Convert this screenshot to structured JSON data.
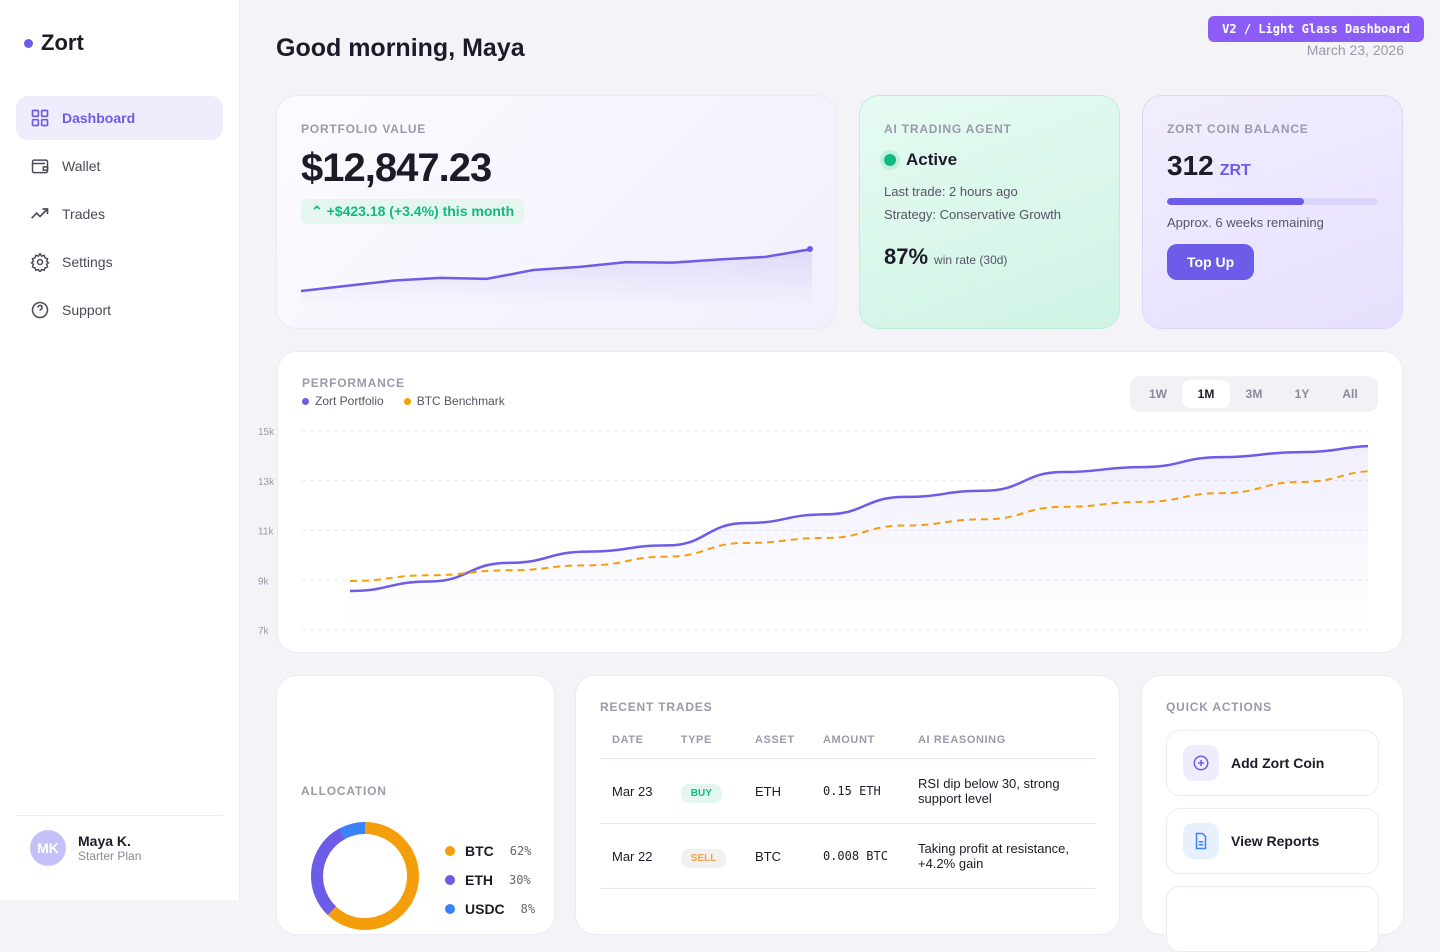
{
  "app": {
    "name": "Zort",
    "accent": "#6c5ce7"
  },
  "sidebar": {
    "items": [
      {
        "label": "Dashboard",
        "icon": "grid-icon",
        "active": true
      },
      {
        "label": "Wallet",
        "icon": "wallet-icon"
      },
      {
        "label": "Trades",
        "icon": "trending-up-icon"
      },
      {
        "label": "Settings",
        "icon": "gear-icon"
      },
      {
        "label": "Support",
        "icon": "help-circle-icon"
      }
    ],
    "user": {
      "initials": "MK",
      "name": "Maya K.",
      "plan": "Starter Plan"
    }
  },
  "header": {
    "greeting": "Good morning, Maya",
    "badge": "V2 / Light Glass Dashboard",
    "date": "March 23, 2026"
  },
  "portfolio": {
    "label": "PORTFOLIO VALUE",
    "value": "$12,847.23",
    "change": "+$423.18 (+3.4%) this month",
    "sparkline": [
      10,
      11,
      12,
      12.5,
      12.3,
      14,
      14.6,
      15.5,
      15.4,
      16,
      16.5,
      18
    ]
  },
  "agent": {
    "label": "AI TRADING AGENT",
    "status": "Active",
    "last_trade": "Last trade: 2 hours ago",
    "strategy": "Strategy: Conservative Growth",
    "win_rate": "87%",
    "win_label": "win rate (30d)"
  },
  "coin": {
    "label": "ZORT COIN BALANCE",
    "amount": "312",
    "unit": "ZRT",
    "progress_pct": 65,
    "remaining": "Approx. 6 weeks remaining",
    "button": "Top Up"
  },
  "performance": {
    "label": "PERFORMANCE",
    "ranges": [
      "1W",
      "1M",
      "3M",
      "1Y",
      "All"
    ],
    "selected_range": "1M"
  },
  "chart_data": {
    "type": "line",
    "y_ticks": [
      "15k",
      "13k",
      "11k",
      "9k",
      "7k"
    ],
    "ylim": [
      7,
      15
    ],
    "grid": true,
    "legend": "top-left",
    "series": [
      {
        "name": "Zort Portfolio",
        "color": "#6c5ce7",
        "style": "solid",
        "values": [
          8.57,
          8.95,
          9.7,
          10.15,
          10.4,
          11.3,
          11.65,
          12.35,
          12.6,
          13.35,
          13.55,
          13.95,
          14.15,
          14.4
        ]
      },
      {
        "name": "BTC Benchmark",
        "color": "#f59e0b",
        "style": "dashed",
        "values": [
          8.97,
          9.2,
          9.4,
          9.6,
          9.95,
          10.5,
          10.7,
          11.2,
          11.45,
          11.95,
          12.15,
          12.5,
          12.95,
          13.4
        ]
      }
    ]
  },
  "allocation": {
    "label": "ALLOCATION",
    "items": [
      {
        "asset": "BTC",
        "pct": "62%",
        "value": 62,
        "color": "#f59e0b"
      },
      {
        "asset": "ETH",
        "pct": "30%",
        "value": 30,
        "color": "#6c5ce7"
      },
      {
        "asset": "USDC",
        "pct": "8%",
        "value": 8,
        "color": "#3b82f6"
      }
    ]
  },
  "trades": {
    "label": "RECENT TRADES",
    "columns": [
      "DATE",
      "TYPE",
      "ASSET",
      "AMOUNT",
      "AI REASONING"
    ],
    "rows": [
      {
        "date": "Mar 23",
        "type": "BUY",
        "asset": "ETH",
        "amount": "0.15 ETH",
        "reason": "RSI dip below 30, strong support level"
      },
      {
        "date": "Mar 22",
        "type": "SELL",
        "asset": "BTC",
        "amount": "0.008 BTC",
        "reason": "Taking profit at resistance, +4.2% gain"
      }
    ]
  },
  "quick_actions": {
    "label": "QUICK ACTIONS",
    "items": [
      {
        "label": "Add Zort Coin",
        "icon": "plus-circle-icon"
      },
      {
        "label": "View Reports",
        "icon": "document-icon"
      }
    ]
  }
}
